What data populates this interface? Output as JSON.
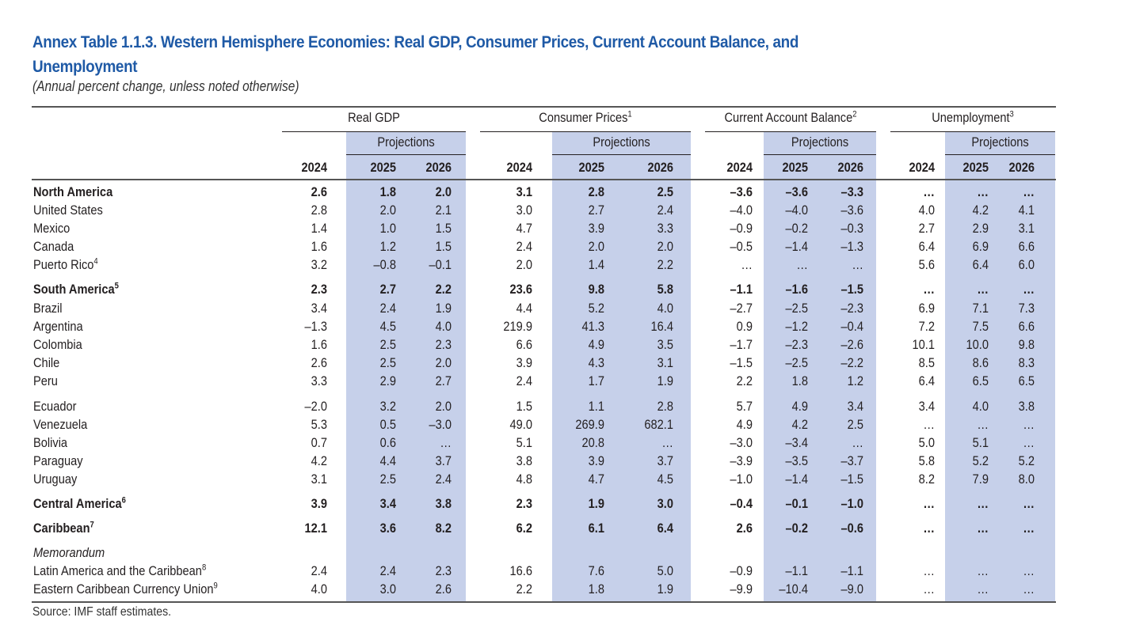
{
  "title": "Annex Table 1.1.3. Western Hemisphere Economies: Real GDP, Consumer Prices, Current Account Balance, and Unemployment",
  "subtitle": "(Annual percent change, unless noted otherwise)",
  "column_groups": [
    {
      "label": "Real GDP",
      "sup": ""
    },
    {
      "label": "Consumer Prices",
      "sup": "1"
    },
    {
      "label": "Current Account Balance",
      "sup": "2"
    },
    {
      "label": "Unemployment",
      "sup": "3"
    }
  ],
  "projections_label": "Projections",
  "years": [
    "2024",
    "2025",
    "2026"
  ],
  "rows": [
    {
      "label": "North America",
      "sup": "",
      "style": "bold",
      "values": [
        "2.6",
        "1.8",
        "2.0",
        "3.1",
        "2.8",
        "2.5",
        "-3.6",
        "-3.6",
        "-3.3",
        "...",
        "...",
        "..."
      ]
    },
    {
      "label": "United States",
      "sup": "",
      "style": "normal",
      "values": [
        "2.8",
        "2.0",
        "2.1",
        "3.0",
        "2.7",
        "2.4",
        "-4.0",
        "-4.0",
        "-3.6",
        "4.0",
        "4.2",
        "4.1"
      ]
    },
    {
      "label": "Mexico",
      "sup": "",
      "style": "normal",
      "values": [
        "1.4",
        "1.0",
        "1.5",
        "4.7",
        "3.9",
        "3.3",
        "-0.9",
        "-0.2",
        "-0.3",
        "2.7",
        "2.9",
        "3.1"
      ]
    },
    {
      "label": "Canada",
      "sup": "",
      "style": "normal",
      "values": [
        "1.6",
        "1.2",
        "1.5",
        "2.4",
        "2.0",
        "2.0",
        "-0.5",
        "-1.4",
        "-1.3",
        "6.4",
        "6.9",
        "6.6"
      ]
    },
    {
      "label": "Puerto Rico",
      "sup": "4",
      "style": "normal",
      "values": [
        "3.2",
        "-0.8",
        "-0.1",
        "2.0",
        "1.4",
        "2.2",
        "...",
        "...",
        "...",
        "5.6",
        "6.4",
        "6.0"
      ]
    },
    {
      "label": "South America",
      "sup": "5",
      "style": "bold",
      "values": [
        "2.3",
        "2.7",
        "2.2",
        "23.6",
        "9.8",
        "5.8",
        "-1.1",
        "-1.6",
        "-1.5",
        "...",
        "...",
        "..."
      ]
    },
    {
      "label": "Brazil",
      "sup": "",
      "style": "normal",
      "values": [
        "3.4",
        "2.4",
        "1.9",
        "4.4",
        "5.2",
        "4.0",
        "-2.7",
        "-2.5",
        "-2.3",
        "6.9",
        "7.1",
        "7.3"
      ]
    },
    {
      "label": "Argentina",
      "sup": "",
      "style": "normal",
      "values": [
        "-1.3",
        "4.5",
        "4.0",
        "219.9",
        "41.3",
        "16.4",
        "0.9",
        "-1.2",
        "-0.4",
        "7.2",
        "7.5",
        "6.6"
      ]
    },
    {
      "label": "Colombia",
      "sup": "",
      "style": "normal",
      "values": [
        "1.6",
        "2.5",
        "2.3",
        "6.6",
        "4.9",
        "3.5",
        "-1.7",
        "-2.3",
        "-2.6",
        "10.1",
        "10.0",
        "9.8"
      ]
    },
    {
      "label": "Chile",
      "sup": "",
      "style": "normal",
      "values": [
        "2.6",
        "2.5",
        "2.0",
        "3.9",
        "4.3",
        "3.1",
        "-1.5",
        "-2.5",
        "-2.2",
        "8.5",
        "8.6",
        "8.3"
      ]
    },
    {
      "label": "Peru",
      "sup": "",
      "style": "normal",
      "values": [
        "3.3",
        "2.9",
        "2.7",
        "2.4",
        "1.7",
        "1.9",
        "2.2",
        "1.8",
        "1.2",
        "6.4",
        "6.5",
        "6.5"
      ]
    },
    {
      "label": "Ecuador",
      "sup": "",
      "style": "normal",
      "values": [
        "-2.0",
        "3.2",
        "2.0",
        "1.5",
        "1.1",
        "2.8",
        "5.7",
        "4.9",
        "3.4",
        "3.4",
        "4.0",
        "3.8"
      ]
    },
    {
      "label": "Venezuela",
      "sup": "",
      "style": "normal",
      "values": [
        "5.3",
        "0.5",
        "-3.0",
        "49.0",
        "269.9",
        "682.1",
        "4.9",
        "4.2",
        "2.5",
        "...",
        "...",
        "..."
      ]
    },
    {
      "label": "Bolivia",
      "sup": "",
      "style": "normal",
      "values": [
        "0.7",
        "0.6",
        "...",
        "5.1",
        "20.8",
        "...",
        "-3.0",
        "-3.4",
        "...",
        "5.0",
        "5.1",
        "..."
      ]
    },
    {
      "label": "Paraguay",
      "sup": "",
      "style": "normal",
      "values": [
        "4.2",
        "4.4",
        "3.7",
        "3.8",
        "3.9",
        "3.7",
        "-3.9",
        "-3.5",
        "-3.7",
        "5.8",
        "5.2",
        "5.2"
      ]
    },
    {
      "label": "Uruguay",
      "sup": "",
      "style": "normal",
      "values": [
        "3.1",
        "2.5",
        "2.4",
        "4.8",
        "4.7",
        "4.5",
        "-1.0",
        "-1.4",
        "-1.5",
        "8.2",
        "7.9",
        "8.0"
      ]
    },
    {
      "label": "Central America",
      "sup": "6",
      "style": "bold",
      "values": [
        "3.9",
        "3.4",
        "3.8",
        "2.3",
        "1.9",
        "3.0",
        "-0.4",
        "-0.1",
        "-1.0",
        "...",
        "...",
        "..."
      ]
    },
    {
      "label": "Caribbean",
      "sup": "7",
      "style": "bold",
      "values": [
        "12.1",
        "3.6",
        "8.2",
        "6.2",
        "6.1",
        "6.4",
        "2.6",
        "-0.2",
        "-0.6",
        "...",
        "...",
        "..."
      ]
    },
    {
      "label": "Memorandum",
      "sup": "",
      "style": "italic",
      "values": [
        "",
        "",
        "",
        "",
        "",
        "",
        "",
        "",
        "",
        "",
        "",
        ""
      ]
    },
    {
      "label": "Latin America and the Caribbean",
      "sup": "8",
      "style": "normal",
      "values": [
        "2.4",
        "2.4",
        "2.3",
        "16.6",
        "7.6",
        "5.0",
        "-0.9",
        "-1.1",
        "-1.1",
        "...",
        "...",
        "..."
      ]
    },
    {
      "label": "Eastern Caribbean Currency Union",
      "sup": "9",
      "style": "normal",
      "values": [
        "4.0",
        "3.0",
        "2.6",
        "2.2",
        "1.8",
        "1.9",
        "-9.9",
        "-10.4",
        "-9.0",
        "...",
        "...",
        "..."
      ]
    }
  ],
  "source": "Source: IMF staff estimates.",
  "colors": {
    "title": "#1f5aa6",
    "projection_shade": "#c6d0ea",
    "text": "#231f20"
  }
}
